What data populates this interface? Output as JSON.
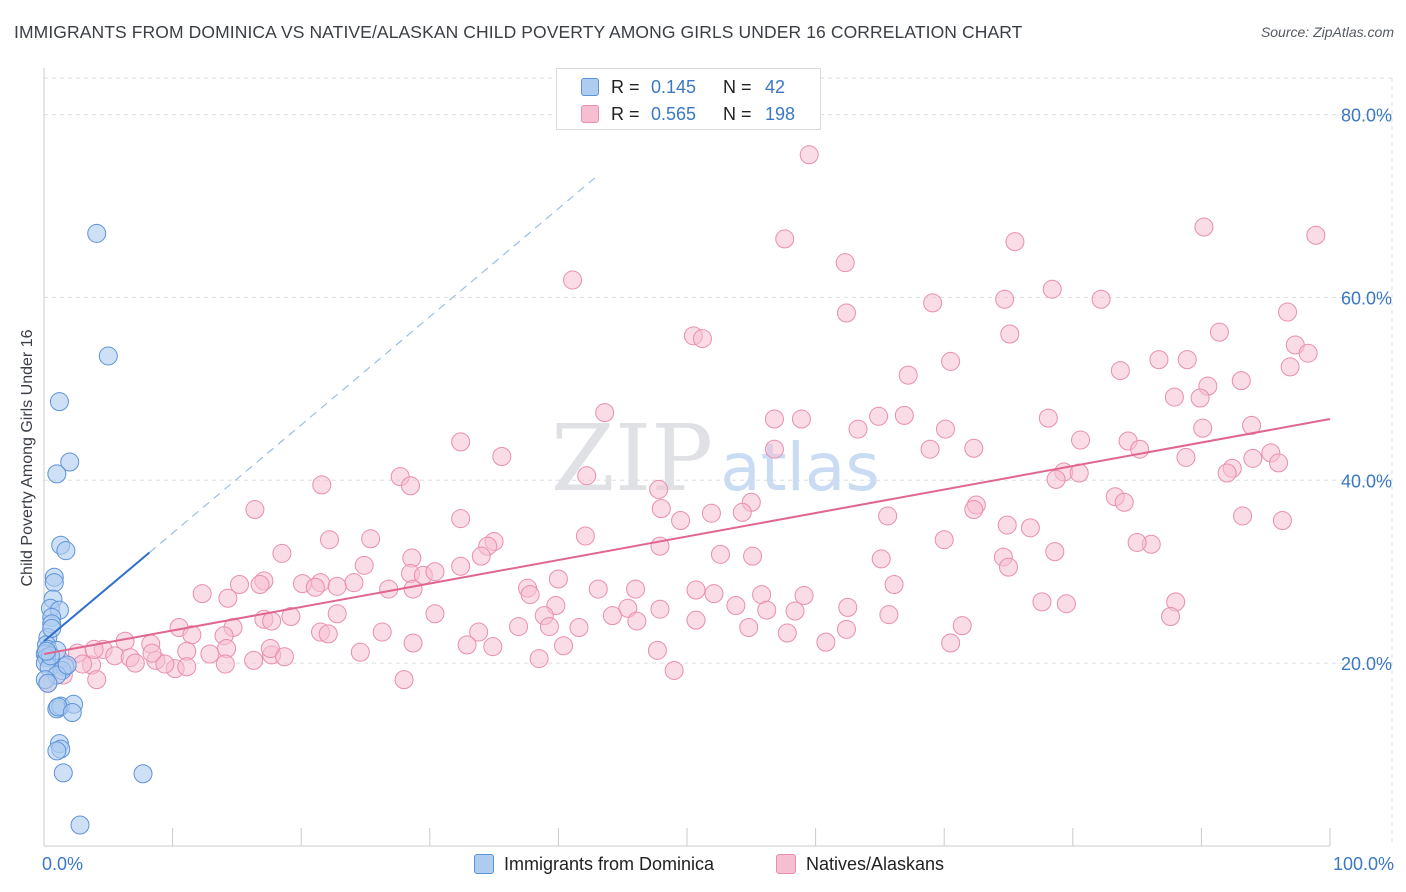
{
  "header": {
    "title": "IMMIGRANTS FROM DOMINICA VS NATIVE/ALASKAN CHILD POVERTY AMONG GIRLS UNDER 16 CORRELATION CHART",
    "source": "Source: ZipAtlas.com"
  },
  "watermark": {
    "zip": "ZIP",
    "atlas": "atlas"
  },
  "legend": {
    "rows": [
      {
        "r_label": "R =",
        "r_value": "0.145",
        "n_label": "N =",
        "n_value": "42"
      },
      {
        "r_label": "R =",
        "r_value": "0.565",
        "n_label": "N =",
        "n_value": "198"
      }
    ]
  },
  "bottom_legend": {
    "series1": "Immigrants from Dominica",
    "series2": "Natives/Alaskans"
  },
  "colors": {
    "blue_fill": "#aecbf0",
    "blue_stroke": "#5d93d8",
    "blue_line": "#2f6fce",
    "pink_fill": "#f6bfd1",
    "pink_stroke": "#e98eae",
    "pink_line": "#e0668f",
    "axis_text": "#3a78c4",
    "grid": "#dcdde0"
  },
  "chart_data": {
    "type": "scatter",
    "title": "IMMIGRANTS FROM DOMINICA VS NATIVE/ALASKAN CHILD POVERTY AMONG GIRLS UNDER 16 CORRELATION CHART",
    "xlabel": "",
    "ylabel": "Child Poverty Among Girls Under 16",
    "xlim": [
      0,
      100
    ],
    "ylim": [
      0,
      84
    ],
    "x_tick_labels": [
      "0.0%",
      "100.0%"
    ],
    "y_ticks": [
      20,
      40,
      60,
      80
    ],
    "y_tick_labels": [
      "20.0%",
      "40.0%",
      "60.0%",
      "80.0%"
    ],
    "grid": true,
    "series": [
      {
        "name": "Immigrants from Dominica",
        "R": 0.145,
        "N": 42,
        "trend": {
          "x0": 0,
          "y0": 22.4,
          "x1": 8.2,
          "y1": 32.1,
          "dashed_to_x": 43
        },
        "points": [
          [
            4.1,
            67.0
          ],
          [
            5.0,
            53.6
          ],
          [
            1.2,
            48.6
          ],
          [
            2.0,
            42.0
          ],
          [
            1.0,
            40.7
          ],
          [
            1.3,
            32.9
          ],
          [
            1.7,
            32.3
          ],
          [
            0.8,
            29.4
          ],
          [
            0.8,
            28.8
          ],
          [
            0.7,
            27.0
          ],
          [
            0.5,
            26.0
          ],
          [
            1.2,
            25.8
          ],
          [
            0.6,
            25.0
          ],
          [
            0.6,
            24.3
          ],
          [
            0.3,
            22.8
          ],
          [
            0.2,
            22.0
          ],
          [
            0.3,
            21.5
          ],
          [
            1.0,
            21.4
          ],
          [
            0.1,
            21.0
          ],
          [
            0.2,
            20.6
          ],
          [
            0.1,
            20.0
          ],
          [
            0.4,
            19.5
          ],
          [
            1.6,
            19.6
          ],
          [
            1.4,
            19.2
          ],
          [
            1.0,
            18.7
          ],
          [
            0.1,
            18.2
          ],
          [
            1.0,
            15.0
          ],
          [
            1.3,
            15.3
          ],
          [
            2.3,
            15.5
          ],
          [
            1.1,
            15.2
          ],
          [
            2.2,
            14.6
          ],
          [
            1.2,
            11.2
          ],
          [
            1.3,
            10.6
          ],
          [
            1.0,
            10.4
          ],
          [
            1.5,
            8.0
          ],
          [
            7.7,
            7.9
          ],
          [
            2.8,
            2.3
          ],
          [
            0.3,
            17.8
          ],
          [
            0.5,
            20.8
          ],
          [
            1.8,
            19.8
          ],
          [
            0.2,
            21.3
          ],
          [
            0.6,
            23.8
          ]
        ]
      },
      {
        "name": "Natives/Alaskans",
        "R": 0.565,
        "N": 198,
        "trend": {
          "x0": 0,
          "y0": 21.0,
          "x1": 100,
          "y1": 46.7
        },
        "points": [
          [
            59.5,
            75.6
          ],
          [
            90.2,
            67.7
          ],
          [
            98.9,
            66.8
          ],
          [
            57.6,
            66.4
          ],
          [
            75.5,
            66.1
          ],
          [
            62.3,
            63.8
          ],
          [
            41.1,
            61.9
          ],
          [
            78.4,
            60.9
          ],
          [
            82.2,
            59.8
          ],
          [
            74.7,
            59.8
          ],
          [
            69.1,
            59.4
          ],
          [
            62.4,
            58.3
          ],
          [
            96.7,
            58.4
          ],
          [
            50.5,
            55.8
          ],
          [
            51.2,
            55.5
          ],
          [
            75.1,
            56.0
          ],
          [
            91.4,
            56.2
          ],
          [
            97.3,
            54.8
          ],
          [
            98.3,
            53.9
          ],
          [
            86.7,
            53.2
          ],
          [
            70.5,
            53.0
          ],
          [
            88.9,
            53.2
          ],
          [
            83.7,
            52.0
          ],
          [
            96.9,
            52.4
          ],
          [
            67.2,
            51.5
          ],
          [
            93.1,
            50.9
          ],
          [
            90.5,
            50.3
          ],
          [
            87.9,
            49.1
          ],
          [
            89.9,
            49.0
          ],
          [
            43.6,
            47.4
          ],
          [
            56.8,
            46.7
          ],
          [
            64.9,
            47.0
          ],
          [
            66.9,
            47.1
          ],
          [
            78.1,
            46.8
          ],
          [
            58.9,
            46.7
          ],
          [
            93.9,
            46.0
          ],
          [
            63.3,
            45.6
          ],
          [
            70.1,
            45.6
          ],
          [
            90.1,
            45.7
          ],
          [
            80.6,
            44.4
          ],
          [
            84.3,
            44.3
          ],
          [
            32.4,
            44.2
          ],
          [
            56.8,
            43.4
          ],
          [
            72.3,
            43.5
          ],
          [
            68.9,
            43.4
          ],
          [
            88.8,
            42.5
          ],
          [
            95.4,
            43.0
          ],
          [
            85.2,
            43.4
          ],
          [
            35.6,
            42.6
          ],
          [
            94.0,
            42.4
          ],
          [
            96.0,
            41.9
          ],
          [
            92.4,
            41.3
          ],
          [
            92.0,
            40.8
          ],
          [
            79.3,
            40.9
          ],
          [
            80.5,
            40.8
          ],
          [
            78.7,
            40.1
          ],
          [
            27.7,
            40.4
          ],
          [
            28.5,
            39.4
          ],
          [
            42.2,
            40.5
          ],
          [
            21.6,
            39.5
          ],
          [
            47.8,
            39.0
          ],
          [
            83.3,
            38.2
          ],
          [
            84.0,
            37.6
          ],
          [
            55.0,
            37.6
          ],
          [
            72.5,
            37.3
          ],
          [
            16.4,
            36.8
          ],
          [
            48.0,
            36.9
          ],
          [
            51.9,
            36.4
          ],
          [
            54.3,
            36.5
          ],
          [
            65.6,
            36.1
          ],
          [
            72.3,
            36.8
          ],
          [
            49.5,
            35.6
          ],
          [
            32.4,
            35.8
          ],
          [
            93.2,
            36.1
          ],
          [
            96.3,
            35.6
          ],
          [
            74.9,
            35.1
          ],
          [
            76.7,
            34.8
          ],
          [
            22.2,
            33.5
          ],
          [
            25.4,
            33.6
          ],
          [
            35.0,
            33.3
          ],
          [
            34.5,
            32.8
          ],
          [
            47.9,
            32.8
          ],
          [
            78.6,
            32.2
          ],
          [
            70.0,
            33.5
          ],
          [
            86.1,
            33.0
          ],
          [
            85.0,
            33.2
          ],
          [
            42.1,
            33.9
          ],
          [
            34.0,
            31.7
          ],
          [
            28.6,
            31.5
          ],
          [
            28.5,
            29.8
          ],
          [
            29.5,
            29.6
          ],
          [
            30.4,
            30.0
          ],
          [
            32.4,
            30.6
          ],
          [
            52.6,
            31.9
          ],
          [
            55.1,
            31.7
          ],
          [
            65.1,
            31.4
          ],
          [
            74.6,
            31.6
          ],
          [
            18.5,
            32.0
          ],
          [
            24.9,
            30.7
          ],
          [
            20.1,
            28.7
          ],
          [
            21.5,
            28.8
          ],
          [
            24.1,
            28.8
          ],
          [
            17.1,
            29.0
          ],
          [
            15.2,
            28.6
          ],
          [
            21.1,
            28.3
          ],
          [
            22.8,
            28.4
          ],
          [
            26.8,
            28.1
          ],
          [
            28.7,
            28.1
          ],
          [
            37.6,
            28.2
          ],
          [
            40.0,
            29.2
          ],
          [
            43.1,
            28.1
          ],
          [
            46.0,
            28.1
          ],
          [
            50.7,
            28.0
          ],
          [
            52.1,
            27.6
          ],
          [
            55.8,
            27.5
          ],
          [
            59.1,
            27.4
          ],
          [
            66.1,
            28.6
          ],
          [
            75.0,
            30.5
          ],
          [
            77.6,
            26.7
          ],
          [
            88.0,
            26.7
          ],
          [
            79.5,
            26.5
          ],
          [
            12.3,
            27.6
          ],
          [
            14.3,
            27.1
          ],
          [
            16.8,
            28.6
          ],
          [
            37.8,
            27.5
          ],
          [
            39.8,
            26.3
          ],
          [
            45.4,
            26.0
          ],
          [
            47.9,
            25.9
          ],
          [
            53.8,
            26.3
          ],
          [
            56.2,
            25.8
          ],
          [
            58.4,
            25.7
          ],
          [
            62.5,
            26.1
          ],
          [
            65.7,
            25.3
          ],
          [
            22.8,
            25.4
          ],
          [
            30.4,
            25.4
          ],
          [
            38.9,
            25.2
          ],
          [
            44.2,
            25.2
          ],
          [
            46.1,
            24.6
          ],
          [
            50.7,
            24.7
          ],
          [
            54.8,
            23.9
          ],
          [
            57.8,
            23.3
          ],
          [
            62.4,
            23.7
          ],
          [
            71.4,
            24.1
          ],
          [
            87.6,
            25.1
          ],
          [
            17.1,
            24.8
          ],
          [
            19.2,
            25.1
          ],
          [
            14.7,
            23.9
          ],
          [
            21.5,
            23.4
          ],
          [
            26.3,
            23.4
          ],
          [
            33.8,
            23.4
          ],
          [
            36.9,
            24.0
          ],
          [
            39.3,
            24.0
          ],
          [
            41.6,
            23.9
          ],
          [
            10.5,
            23.9
          ],
          [
            11.5,
            23.1
          ],
          [
            14.0,
            23.0
          ],
          [
            17.7,
            24.6
          ],
          [
            22.1,
            23.2
          ],
          [
            28.7,
            22.2
          ],
          [
            32.9,
            22.0
          ],
          [
            34.9,
            21.8
          ],
          [
            40.4,
            21.9
          ],
          [
            47.7,
            21.4
          ],
          [
            60.8,
            22.3
          ],
          [
            70.5,
            22.2
          ],
          [
            4.6,
            21.5
          ],
          [
            6.3,
            22.4
          ],
          [
            8.3,
            22.1
          ],
          [
            11.1,
            21.3
          ],
          [
            12.9,
            21.0
          ],
          [
            14.2,
            21.6
          ],
          [
            16.3,
            20.3
          ],
          [
            17.7,
            20.9
          ],
          [
            17.6,
            21.6
          ],
          [
            24.6,
            21.2
          ],
          [
            5.5,
            20.8
          ],
          [
            6.7,
            20.6
          ],
          [
            8.7,
            20.3
          ],
          [
            10.2,
            19.4
          ],
          [
            11.1,
            19.6
          ],
          [
            7.1,
            20.0
          ],
          [
            9.4,
            19.9
          ],
          [
            3.7,
            19.8
          ],
          [
            4.1,
            18.2
          ],
          [
            1.5,
            18.7
          ],
          [
            2.6,
            21.1
          ],
          [
            3.0,
            19.9
          ],
          [
            1.2,
            20.4
          ],
          [
            0.3,
            17.8
          ],
          [
            3.9,
            21.5
          ],
          [
            14.1,
            19.9
          ],
          [
            8.4,
            21.1
          ],
          [
            18.7,
            20.7
          ],
          [
            28.0,
            18.2
          ],
          [
            49.0,
            19.2
          ],
          [
            38.5,
            20.5
          ]
        ]
      }
    ]
  }
}
